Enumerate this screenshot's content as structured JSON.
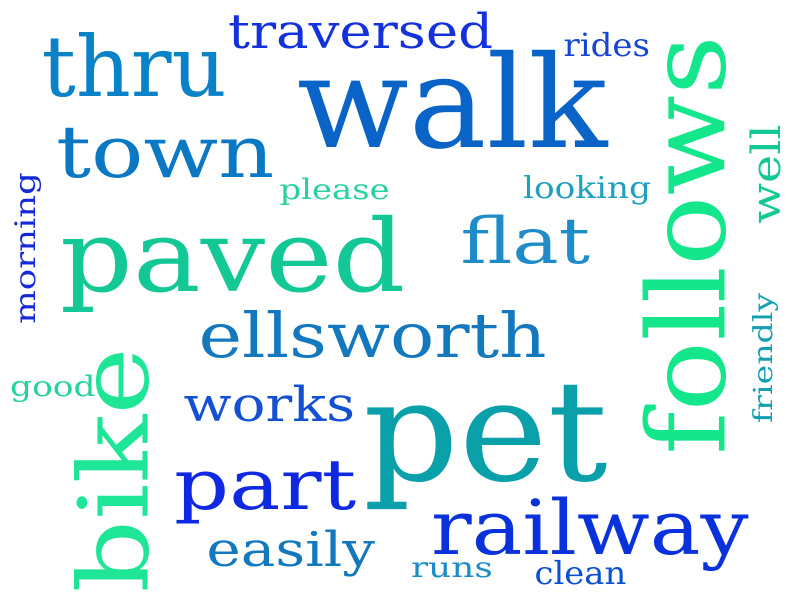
{
  "words": [
    {
      "id": "walk",
      "text": "walk",
      "color": "#0a64c8"
    },
    {
      "id": "pet",
      "text": "pet",
      "color": "#0aa0aa"
    },
    {
      "id": "paved",
      "text": "paved",
      "color": "#14c896"
    },
    {
      "id": "follows",
      "text": "follows",
      "color": "#14e68c"
    },
    {
      "id": "bike",
      "text": "bike",
      "color": "#1ee696"
    },
    {
      "id": "thru",
      "text": "thru",
      "color": "#0a82c8"
    },
    {
      "id": "town",
      "text": "town",
      "color": "#0a78c3"
    },
    {
      "id": "traversed",
      "text": "traversed",
      "color": "#1432dc"
    },
    {
      "id": "ellsworth",
      "text": "ellsworth",
      "color": "#1478be"
    },
    {
      "id": "railway",
      "text": "railway",
      "color": "#0a32dc"
    },
    {
      "id": "part",
      "text": "part",
      "color": "#0f28e1"
    },
    {
      "id": "flat",
      "text": "flat",
      "color": "#1e8cc8"
    },
    {
      "id": "works",
      "text": "works",
      "color": "#1450d2"
    },
    {
      "id": "easily",
      "text": "easily",
      "color": "#1478be"
    },
    {
      "id": "well",
      "text": "well",
      "color": "#14c896"
    },
    {
      "id": "rides",
      "text": "rides",
      "color": "#1446d2"
    },
    {
      "id": "looking",
      "text": "looking",
      "color": "#1ea0be"
    },
    {
      "id": "please",
      "text": "please",
      "color": "#28d2a0"
    },
    {
      "id": "morning",
      "text": "morning",
      "color": "#1428dc"
    },
    {
      "id": "friendly",
      "text": "friendly",
      "color": "#14a0b4"
    },
    {
      "id": "good",
      "text": "good",
      "color": "#28d2a0"
    },
    {
      "id": "runs",
      "text": "runs",
      "color": "#1e8cc8"
    },
    {
      "id": "clean",
      "text": "clean",
      "color": "#0a50d2"
    }
  ]
}
